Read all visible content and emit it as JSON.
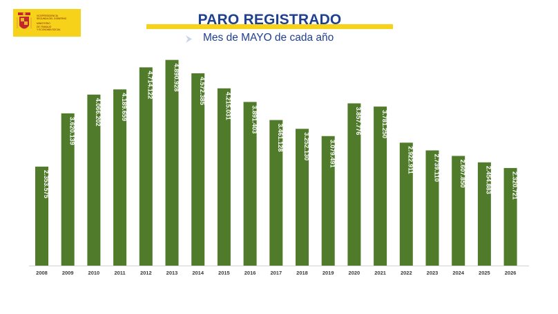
{
  "header": {
    "title": "PARO REGISTRADO",
    "subtitle": "Mes de MAYO de cada año"
  },
  "logo": {
    "line1": "Vicepresidencia",
    "line2": "Segunda del Gobierno",
    "line3": "Ministerio",
    "line4": "de Trabajo",
    "line5": "y Economía Social"
  },
  "colors": {
    "bar": "#4f7b2b",
    "title": "#1f3f8f",
    "accent": "#f6d21a"
  },
  "chart_data": {
    "type": "bar",
    "title": "PARO REGISTRADO",
    "subtitle": "Mes de MAYO de cada año",
    "categories": [
      "2008",
      "2009",
      "2010",
      "2011",
      "2012",
      "2013",
      "2014",
      "2015",
      "2016",
      "2017",
      "2018",
      "2019",
      "2020",
      "2021",
      "2022",
      "2023",
      "2024",
      "2025",
      "2026"
    ],
    "values": [
      2353575,
      3620139,
      4066202,
      4189659,
      4714122,
      4890928,
      4572385,
      4215031,
      3891403,
      3461128,
      3252130,
      3079491,
      3857776,
      3781250,
      2922911,
      2739110,
      2607850,
      2454883,
      2320721
    ],
    "value_labels": [
      "2.353.575",
      "3.620.139",
      "4.066.202",
      "4.189.659",
      "4.714.122",
      "4.890.928",
      "4.572.385",
      "4.215.031",
      "3.891.403",
      "3.461.128",
      "3.252.130",
      "3.079.491",
      "3.857.776",
      "3.781.250",
      "2.922.911",
      "2.739.110",
      "2.607.850",
      "2.454.883",
      "2.320.721"
    ],
    "ylim": [
      0,
      5000000
    ],
    "grid": false,
    "legend": "none"
  }
}
